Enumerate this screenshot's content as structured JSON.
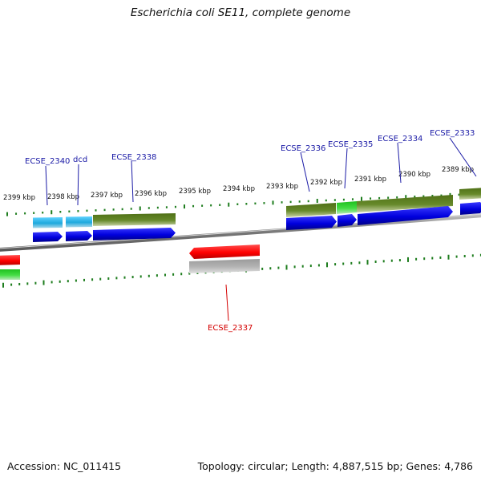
{
  "title": "Escherichia coli SE11, complete genome",
  "footer": {
    "accession": "Accession: NC_011415",
    "summary": "Topology: circular; Length: 4,887,515 bp; Genes: 4,786"
  },
  "colors": {
    "background": "#ffffff",
    "tick": "#1e7d1e",
    "label_forward": "#1a1aa6",
    "label_reverse": "#d40000",
    "cds_blue": "#0000dd",
    "gene_cyan": "#1ea9dd",
    "gene_olive": "#5c7f1f",
    "gene_green": "#33cc33",
    "gene_red": "#ff0000",
    "gene_grey": "#a9a9a9",
    "backbone": "#777777"
  },
  "scale_labels": [
    "2399 kbp",
    "2398 kbp",
    "2397 kbp",
    "2396 kbp",
    "2395 kbp",
    "2394 kbp",
    "2393 kbp",
    "2392 kbp",
    "2391 kbp",
    "2390 kbp",
    "2389 kbp"
  ],
  "gene_labels": {
    "forward": [
      "ECSE_2340",
      "dcd",
      "ECSE_2338",
      "ECSE_2336",
      "ECSE_2335",
      "ECSE_2334",
      "ECSE_2333"
    ],
    "reverse": [
      "ECSE_2337"
    ]
  }
}
